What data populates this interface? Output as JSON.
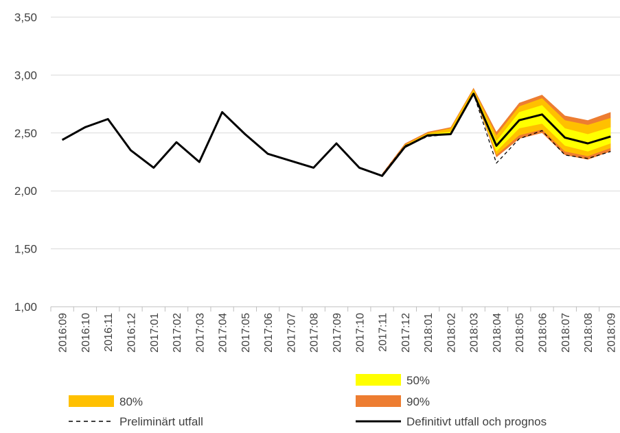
{
  "chart_data": {
    "type": "line",
    "categories": [
      "2016:09",
      "2016:10",
      "2016:11",
      "2016:12",
      "2017:01",
      "2017:02",
      "2017:03",
      "2017:04",
      "2017:05",
      "2017:06",
      "2017:07",
      "2017:08",
      "2017:09",
      "2017:10",
      "2017:11",
      "2017:12",
      "2018:01",
      "2018:02",
      "2018:03",
      "2018:04",
      "2018:05",
      "2018:06",
      "2018:07",
      "2018:08",
      "2018:09"
    ],
    "ylim": [
      1.0,
      3.5
    ],
    "yticks": [
      "1,00",
      "1,50",
      "2,00",
      "2,50",
      "3,00",
      "3,50"
    ],
    "ytick_values": [
      1.0,
      1.5,
      2.0,
      2.5,
      3.0,
      3.5
    ],
    "grid": true,
    "legend_position": "bottom",
    "series": [
      {
        "name": "Definitivt utfall och prognos",
        "style": "solid",
        "color": "#000000",
        "values": [
          2.44,
          2.55,
          2.62,
          2.35,
          2.2,
          2.42,
          2.25,
          2.68,
          2.49,
          2.32,
          2.26,
          2.2,
          2.41,
          2.2,
          2.13,
          2.38,
          2.48,
          2.49,
          2.84,
          2.39,
          2.61,
          2.66,
          2.46,
          2.41,
          2.47
        ]
      },
      {
        "name": "Preliminärt utfall",
        "style": "dashed",
        "color": "#000000",
        "values": [
          null,
          null,
          null,
          null,
          null,
          null,
          null,
          null,
          null,
          null,
          null,
          null,
          null,
          null,
          2.14,
          2.39,
          2.47,
          2.49,
          2.84,
          2.24,
          2.45,
          2.52,
          2.31,
          2.28,
          2.34
        ]
      }
    ],
    "bands": [
      {
        "name": "90%",
        "color": "#ED7D31",
        "start_index": 14,
        "lower": [
          2.13,
          2.38,
          2.48,
          2.49,
          2.84,
          2.29,
          2.45,
          2.5,
          2.31,
          2.27,
          2.34
        ],
        "upper": [
          2.15,
          2.41,
          2.51,
          2.55,
          2.89,
          2.51,
          2.76,
          2.83,
          2.65,
          2.61,
          2.68
        ]
      },
      {
        "name": "80%",
        "color": "#FFC000",
        "start_index": 14,
        "lower": [
          2.13,
          2.38,
          2.48,
          2.49,
          2.84,
          2.31,
          2.48,
          2.53,
          2.34,
          2.3,
          2.37
        ],
        "upper": [
          2.14,
          2.4,
          2.5,
          2.54,
          2.88,
          2.48,
          2.73,
          2.8,
          2.61,
          2.57,
          2.63
        ]
      },
      {
        "name": "50%",
        "color": "#FFFF00",
        "start_index": 14,
        "lower": [
          2.13,
          2.38,
          2.48,
          2.49,
          2.84,
          2.34,
          2.54,
          2.58,
          2.39,
          2.34,
          2.41
        ],
        "upper": [
          2.13,
          2.39,
          2.49,
          2.51,
          2.86,
          2.43,
          2.68,
          2.74,
          2.54,
          2.49,
          2.55
        ]
      }
    ],
    "legend": [
      {
        "label": "50%",
        "kind": "box",
        "color": "#FFFF00"
      },
      {
        "label": "80%",
        "kind": "box",
        "color": "#FFC000"
      },
      {
        "label": "90%",
        "kind": "box",
        "color": "#ED7D31"
      },
      {
        "label": "Preliminärt utfall",
        "kind": "dashed",
        "color": "#000000"
      },
      {
        "label": "Definitivt utfall och prognos",
        "kind": "solid",
        "color": "#000000"
      }
    ]
  }
}
